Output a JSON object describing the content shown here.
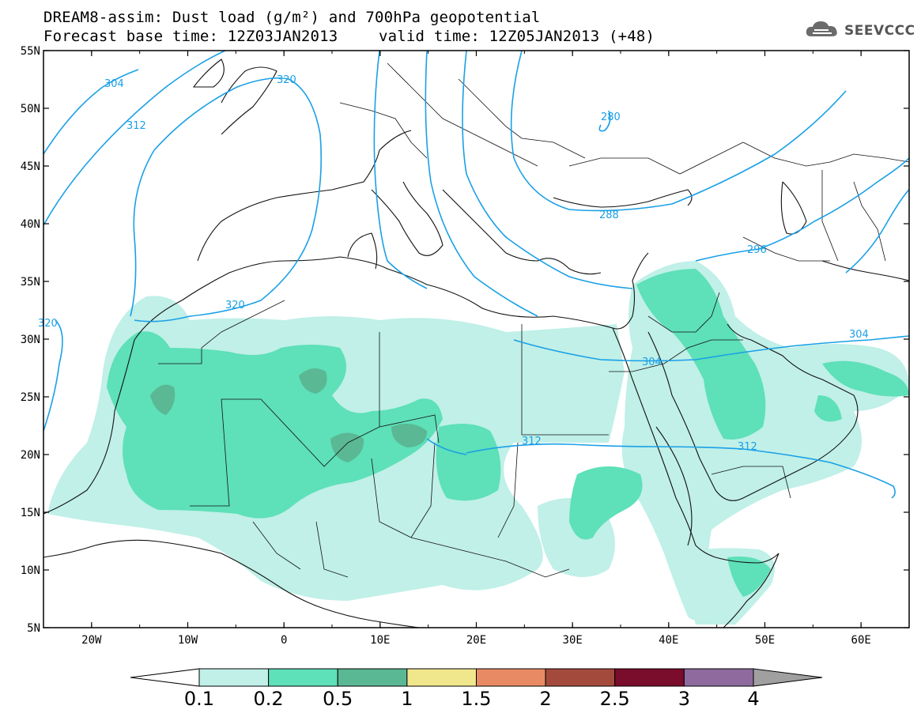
{
  "title": {
    "line1": "DREAM8-assim: Dust load (g/m²) and 700hPa geopotential",
    "line2_left": "Forecast base time: 12Z03JAN2013",
    "line2_right": "valid time: 12Z05JAN2013 (+48)"
  },
  "logo": {
    "text": "SEEVCCC",
    "icon": "cloud-icon"
  },
  "map": {
    "lon_range": [
      -25,
      65
    ],
    "lat_range": [
      5,
      55
    ],
    "lon_ticks": [
      "20W",
      "10W",
      "0",
      "10E",
      "20E",
      "30E",
      "40E",
      "50E",
      "60E"
    ],
    "lat_ticks": [
      "55N",
      "50N",
      "45N",
      "40N",
      "35N",
      "30N",
      "25N",
      "20N",
      "15N",
      "10N",
      "5N"
    ],
    "contour_labels": [
      "304",
      "320",
      "312",
      "280",
      "288",
      "296",
      "320",
      "320",
      "304",
      "304",
      "312",
      "312"
    ]
  },
  "colorbar": {
    "labels": [
      "0.1",
      "0.2",
      "0.5",
      "1",
      "1.5",
      "2",
      "2.5",
      "3",
      "4"
    ],
    "colors": [
      "#ffffff",
      "#c0f0e8",
      "#5ee0b8",
      "#5ab894",
      "#f0e68c",
      "#e88a64",
      "#a44a3c",
      "#7a0c2c",
      "#8e6a9e",
      "#a0a0a0"
    ]
  }
}
